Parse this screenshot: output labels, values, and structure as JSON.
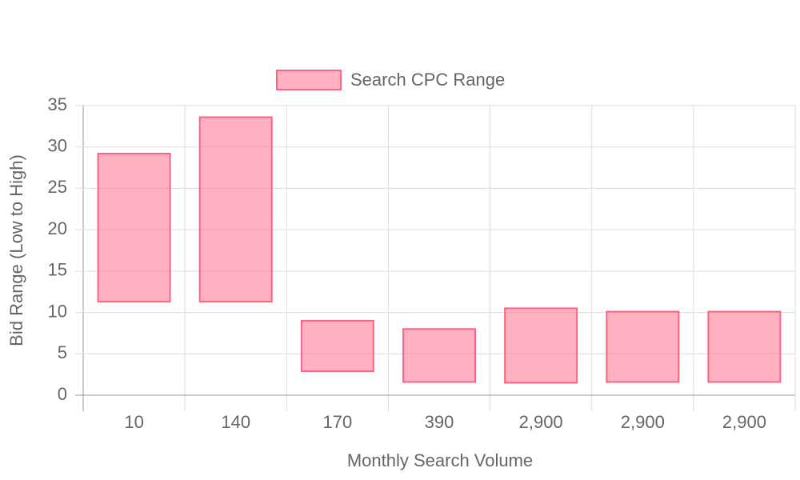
{
  "chart_data": {
    "type": "floating-bar",
    "x_label": "Monthly Search Volume",
    "y_label": "Bid Range (Low to High)",
    "categories": [
      "10",
      "140",
      "170",
      "390",
      "2,900",
      "2,900",
      "2,900"
    ],
    "series": [
      {
        "name": "Search CPC Range",
        "color": "#ff6384",
        "values": [
          [
            11.3,
            29.2
          ],
          [
            11.3,
            33.6
          ],
          [
            2.9,
            9.0
          ],
          [
            1.6,
            8.0
          ],
          [
            1.5,
            10.5
          ],
          [
            1.6,
            10.1
          ],
          [
            1.6,
            10.1
          ]
        ]
      }
    ],
    "ylim": [
      0,
      35
    ],
    "yticks": [
      0,
      5,
      10,
      15,
      20,
      25,
      30,
      35
    ],
    "grid": true,
    "legend": "top"
  }
}
